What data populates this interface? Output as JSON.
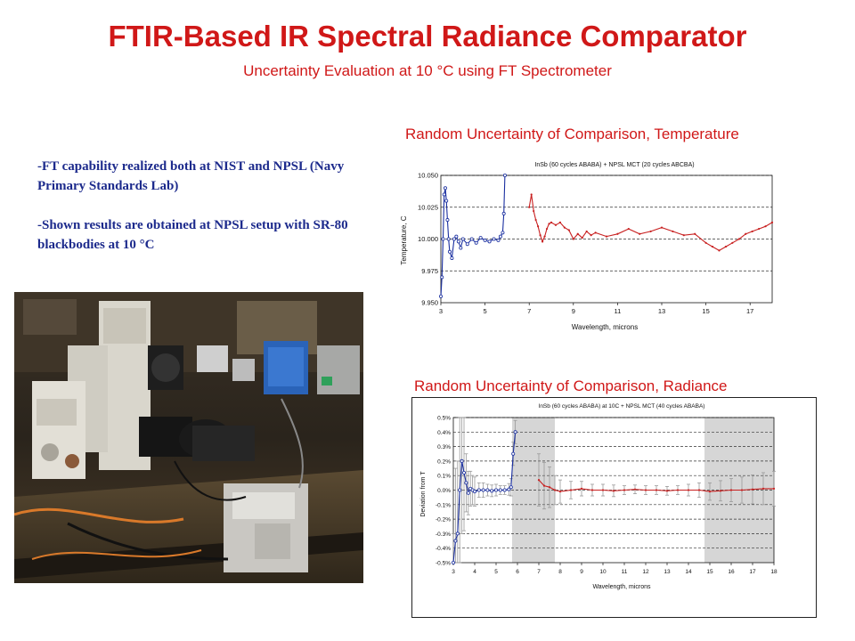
{
  "header": {
    "title": "FTIR-Based IR Spectral Radiance Comparator",
    "subtitle": "Uncertainty Evaluation at 10 °C using FT Spectrometer"
  },
  "notes": {
    "bullet1": "-FT capability realized both at NIST and NPSL (Navy Primary Standards Lab)",
    "bullet2": "-Shown results are obtained at NPSL setup with SR-80 blackbodies at 10 °C"
  },
  "photo": {
    "icon": "lab-equipment-photo"
  },
  "chart_data": [
    {
      "type": "line",
      "caption": "Random Uncertainty of Comparison, Temperature",
      "title": "InSb (60 cycles ABABA) + NPSL MCT (20 cycles ABCBA)",
      "xlabel": "Wavelength, microns",
      "ylabel": "Temperature, C",
      "xlim": [
        3,
        18
      ],
      "ylim": [
        9.95,
        10.05
      ],
      "xticks": [
        3,
        5,
        7,
        9,
        11,
        13,
        15,
        17
      ],
      "yticks": [
        9.95,
        9.975,
        10.0,
        10.025,
        10.05
      ],
      "ytick_labels": [
        "9.950",
        "9.975",
        "10.000",
        "10.025",
        "10.050"
      ],
      "grid": "horizontal-dashed",
      "series": [
        {
          "color": "#1a2fa0",
          "marker": "open-circle",
          "x": [
            3.0,
            3.05,
            3.1,
            3.15,
            3.2,
            3.25,
            3.3,
            3.35,
            3.4,
            3.5,
            3.6,
            3.7,
            3.8,
            3.9,
            4.0,
            4.2,
            4.4,
            4.6,
            4.8,
            5.0,
            5.2,
            5.4,
            5.6,
            5.7,
            5.8,
            5.85,
            5.9
          ],
          "y": [
            9.955,
            9.97,
            10.0,
            10.035,
            10.04,
            10.03,
            10.015,
            10.0,
            9.99,
            9.985,
            10.0,
            10.002,
            9.998,
            9.993,
            10.0,
            9.996,
            10.0,
            9.997,
            10.001,
            9.999,
            9.998,
            10.0,
            9.999,
            10.002,
            10.005,
            10.02,
            10.05
          ]
        },
        {
          "color": "#c82020",
          "marker": "small-dot",
          "x": [
            7.0,
            7.1,
            7.2,
            7.3,
            7.4,
            7.5,
            7.6,
            7.7,
            7.8,
            7.9,
            8.0,
            8.2,
            8.4,
            8.6,
            8.8,
            9.0,
            9.2,
            9.4,
            9.6,
            9.8,
            10.0,
            10.5,
            11.0,
            11.5,
            12.0,
            12.5,
            13.0,
            13.5,
            14.0,
            14.5,
            15.0,
            15.3,
            15.6,
            15.9,
            16.2,
            16.5,
            16.8,
            17.1,
            17.4,
            17.7,
            18.0
          ],
          "y": [
            10.025,
            10.035,
            10.022,
            10.015,
            10.01,
            10.003,
            9.998,
            10.002,
            10.008,
            10.012,
            10.013,
            10.011,
            10.013,
            10.009,
            10.007,
            10.0,
            10.004,
            10.001,
            10.006,
            10.003,
            10.005,
            10.002,
            10.004,
            10.008,
            10.004,
            10.006,
            10.009,
            10.006,
            10.003,
            10.004,
            9.997,
            9.994,
            9.991,
            9.994,
            9.997,
            10.0,
            10.004,
            10.006,
            10.008,
            10.01,
            10.013
          ]
        }
      ]
    },
    {
      "type": "line",
      "caption": "Random Uncertainty of Comparison, Radiance",
      "title": "InSb (60 cycles ABABA) at 10C + NPSL MCT (40 cycles ABABA)",
      "xlabel": "Wavelength, microns",
      "ylabel": "Deviation from T",
      "xlim": [
        3,
        18
      ],
      "ylim": [
        -0.5,
        0.5
      ],
      "xticks": [
        3,
        4,
        5,
        6,
        7,
        8,
        9,
        10,
        11,
        12,
        13,
        14,
        15,
        16,
        17,
        18
      ],
      "yticks": [
        -0.5,
        -0.4,
        -0.3,
        -0.2,
        -0.1,
        0.0,
        0.1,
        0.2,
        0.3,
        0.4,
        0.5
      ],
      "ytick_labels": [
        "-0.5%",
        "-0.4%",
        "-0.3%",
        "-0.2%",
        "-0.1%",
        "0.0%",
        "0.1%",
        "0.2%",
        "0.3%",
        "0.4%",
        "0.5%"
      ],
      "yunit": "%",
      "grid": "horizontal-dashed",
      "shaded_regions": [
        [
          5.75,
          7.75
        ],
        [
          14.75,
          18.0
        ]
      ],
      "series": [
        {
          "color": "#1a2fa0",
          "marker": "open-circle",
          "error_bars": true,
          "x": [
            3.0,
            3.1,
            3.2,
            3.3,
            3.4,
            3.5,
            3.6,
            3.7,
            3.8,
            3.9,
            4.0,
            4.2,
            4.4,
            4.6,
            4.8,
            5.0,
            5.2,
            5.4,
            5.6,
            5.7,
            5.8,
            5.9
          ],
          "y": [
            -0.5,
            -0.35,
            -0.3,
            0.0,
            0.2,
            0.12,
            0.05,
            -0.02,
            0.01,
            0.0,
            -0.01,
            0.0,
            0.0,
            0.0,
            -0.005,
            0.0,
            0.0,
            0.0,
            0.005,
            0.02,
            0.25,
            0.4
          ],
          "err": [
            0.2,
            0.5,
            0.5,
            0.5,
            0.5,
            0.4,
            0.2,
            0.15,
            0.12,
            0.1,
            0.1,
            0.05,
            0.05,
            0.04,
            0.04,
            0.04,
            0.03,
            0.03,
            0.04,
            0.06,
            0.08,
            0.08
          ]
        },
        {
          "color": "#c82020",
          "marker": "small-dot",
          "error_bars": true,
          "x": [
            7.0,
            7.25,
            7.5,
            7.75,
            8.0,
            8.5,
            9.0,
            9.5,
            10.0,
            10.5,
            11.0,
            11.5,
            12.0,
            12.5,
            13.0,
            13.5,
            14.0,
            14.5,
            15.0,
            15.5,
            16.0,
            16.5,
            17.0,
            17.5,
            18.0
          ],
          "y": [
            0.07,
            0.03,
            0.02,
            0.0,
            -0.01,
            0.0,
            0.01,
            0.0,
            0.0,
            -0.005,
            0.0,
            0.005,
            0.0,
            0.0,
            -0.005,
            0.0,
            0.0,
            0.0,
            -0.01,
            -0.005,
            0.0,
            0.0,
            0.005,
            0.01,
            0.01
          ],
          "err": [
            0.18,
            0.16,
            0.14,
            0.1,
            0.08,
            0.06,
            0.05,
            0.04,
            0.04,
            0.04,
            0.03,
            0.03,
            0.03,
            0.03,
            0.03,
            0.03,
            0.04,
            0.05,
            0.06,
            0.07,
            0.08,
            0.09,
            0.1,
            0.11,
            0.12
          ]
        }
      ]
    }
  ]
}
